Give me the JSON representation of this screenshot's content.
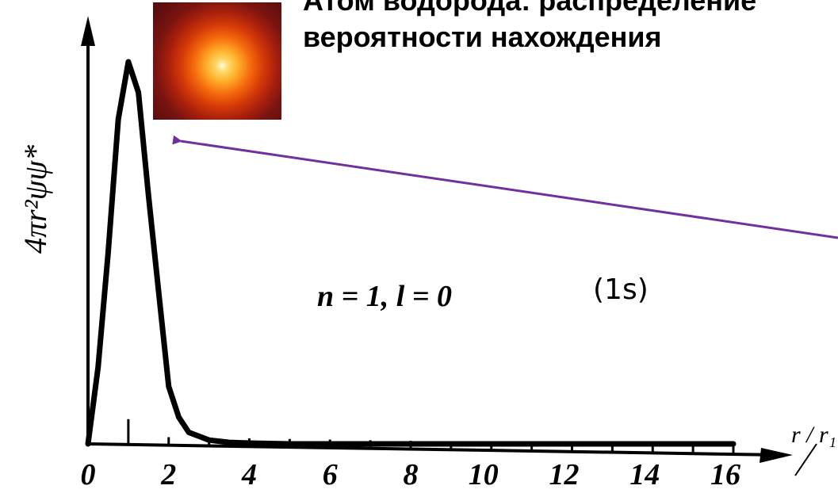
{
  "title": {
    "line1": "Атом водорода: распределение",
    "line2": "вероятности нахождения"
  },
  "state_label": "(1s)",
  "quantum_numbers": "n = 1,  l = 0",
  "arrow_color": "#7030a0",
  "chart_data": {
    "type": "line",
    "ylabel": "4πr²ψψ*",
    "xlabel": "r / r₁",
    "xlim": [
      0,
      17
    ],
    "ylim": [
      0,
      1
    ],
    "xticks": [
      "0",
      "2",
      "4",
      "6",
      "8",
      "10",
      "12",
      "14",
      "16"
    ],
    "series": [
      {
        "x": [
          0,
          0.25,
          0.5,
          0.75,
          1.0,
          1.25,
          1.5,
          1.75,
          2.0,
          2.25,
          2.5,
          3.0,
          3.5,
          4.0,
          5.0,
          6.0,
          8.0,
          10.0,
          12.0,
          14.0,
          16.0
        ],
        "values": [
          0.0,
          0.2,
          0.5,
          0.85,
          1.0,
          0.92,
          0.65,
          0.4,
          0.15,
          0.07,
          0.03,
          0.01,
          0.004,
          0.002,
          0.0,
          0.0,
          0.0,
          0.0,
          0.0,
          0.0,
          0.0
        ]
      }
    ]
  }
}
